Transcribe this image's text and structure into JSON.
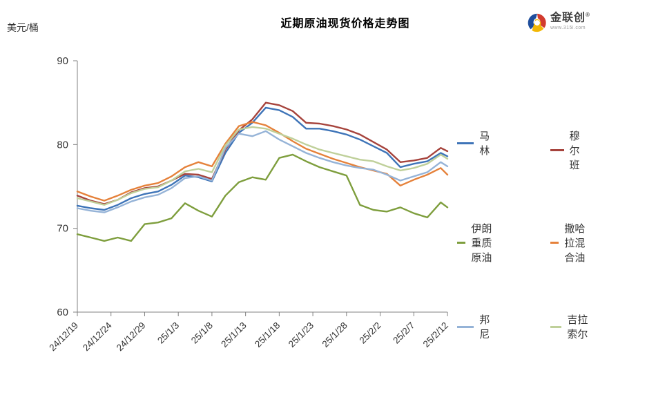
{
  "header": {
    "unit_label": "美元/桶",
    "title": "近期原油现货价格走势图",
    "logo": {
      "name": "金联创",
      "reg_mark": "®",
      "url_text": "www.315i.com"
    }
  },
  "chart_data": {
    "type": "line",
    "title": "近期原油现货价格走势图",
    "ylabel": "美元/桶",
    "ylim": [
      60,
      90
    ],
    "y_ticks": [
      90,
      80,
      70,
      60
    ],
    "grid": false,
    "legend_position": "right",
    "x_tick_labels": [
      "24/12/19",
      "24/12/24",
      "24/12/29",
      "25/1/3",
      "25/1/8",
      "25/1/13",
      "25/1/18",
      "25/1/23",
      "25/1/28",
      "25/2/2",
      "25/2/7",
      "25/2/12"
    ],
    "x_tick_days": [
      0,
      5,
      10,
      15,
      20,
      25,
      30,
      35,
      40,
      45,
      50,
      55
    ],
    "x_range_days": [
      0,
      55
    ],
    "x_days": [
      0,
      2,
      4,
      6,
      8,
      10,
      12,
      14,
      16,
      18,
      20,
      22,
      24,
      26,
      28,
      30,
      32,
      34,
      36,
      38,
      40,
      42,
      44,
      46,
      48,
      50,
      52,
      54,
      55
    ],
    "series": [
      {
        "name": "马林",
        "color": "#3E74B8",
        "values": [
          72.7,
          72.4,
          72.2,
          72.8,
          73.6,
          74.1,
          74.4,
          75.2,
          76.3,
          76.1,
          75.6,
          79.0,
          81.4,
          82.6,
          84.4,
          84.1,
          83.3,
          81.9,
          81.9,
          81.6,
          81.2,
          80.6,
          79.8,
          79.0,
          77.3,
          77.7,
          78.0,
          79.0,
          78.6
        ]
      },
      {
        "name": "穆尔班",
        "color": "#A6433C",
        "values": [
          73.9,
          73.3,
          72.9,
          73.4,
          74.3,
          74.8,
          75.0,
          75.7,
          76.5,
          76.4,
          75.9,
          79.4,
          81.7,
          83.0,
          85.0,
          84.7,
          84.0,
          82.6,
          82.5,
          82.2,
          81.8,
          81.2,
          80.3,
          79.4,
          77.9,
          78.1,
          78.4,
          79.6,
          79.2
        ]
      },
      {
        "name": "伊朗重质原油",
        "color": "#7E9E3D",
        "values": [
          69.3,
          68.9,
          68.5,
          68.9,
          68.5,
          70.5,
          70.7,
          71.2,
          73.0,
          72.1,
          71.4,
          73.9,
          75.5,
          76.1,
          75.8,
          78.4,
          78.8,
          78.0,
          77.3,
          76.8,
          76.3,
          72.8,
          72.2,
          72.0,
          72.5,
          71.8,
          71.3,
          73.1,
          72.5
        ]
      },
      {
        "name": "撒哈拉混合油",
        "color": "#E5813A",
        "values": [
          74.4,
          73.8,
          73.3,
          73.9,
          74.6,
          75.1,
          75.4,
          76.2,
          77.3,
          77.9,
          77.4,
          80.1,
          82.2,
          82.7,
          82.3,
          81.4,
          80.4,
          79.5,
          78.9,
          78.3,
          77.8,
          77.3,
          76.9,
          76.5,
          75.1,
          75.8,
          76.4,
          77.2,
          76.4
        ]
      },
      {
        "name": "邦尼",
        "color": "#95B3D7",
        "values": [
          72.4,
          72.1,
          71.9,
          72.5,
          73.2,
          73.7,
          74.0,
          74.8,
          76.0,
          76.2,
          75.7,
          79.6,
          81.3,
          81.0,
          81.6,
          80.6,
          79.8,
          79.0,
          78.4,
          77.9,
          77.5,
          77.2,
          77.0,
          76.4,
          75.7,
          76.2,
          76.7,
          77.9,
          77.4
        ]
      },
      {
        "name": "吉拉索尔",
        "color": "#BFD09A",
        "values": [
          73.6,
          73.2,
          72.8,
          73.4,
          74.2,
          74.7,
          74.9,
          75.7,
          76.8,
          77.1,
          76.7,
          79.9,
          81.8,
          82.1,
          81.9,
          81.3,
          80.7,
          80.0,
          79.4,
          79.0,
          78.6,
          78.2,
          78.0,
          77.4,
          76.9,
          77.2,
          77.7,
          78.8,
          78.3
        ]
      }
    ]
  },
  "legend": {
    "rows": [
      {
        "items": [
          {
            "label": "马林",
            "color": "#3E74B8"
          },
          {
            "label": "穆尔班",
            "color": "#A6433C"
          }
        ]
      },
      {
        "items": [
          {
            "label": "伊朗重质原油",
            "color": "#7E9E3D"
          },
          {
            "label": "撒哈拉混合油",
            "color": "#E5813A"
          }
        ]
      },
      {
        "items": [
          {
            "label": "邦尼",
            "color": "#95B3D7"
          },
          {
            "label": "吉拉索尔",
            "color": "#BFD09A"
          }
        ]
      }
    ]
  }
}
